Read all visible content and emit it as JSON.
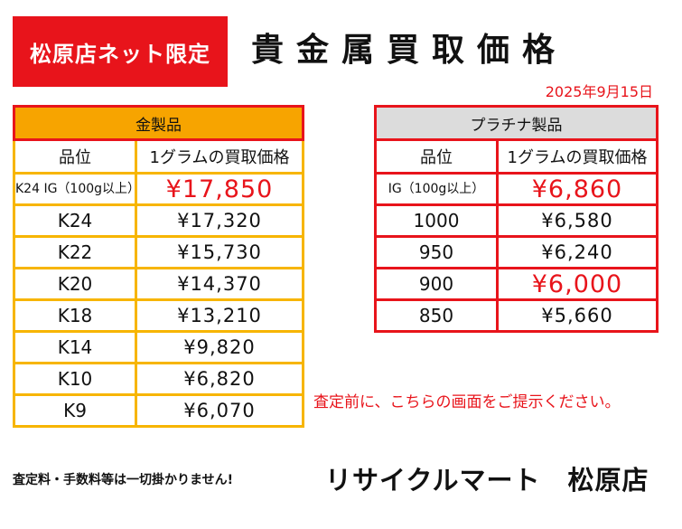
{
  "badge": "松原店ネット限定",
  "title": "貴金属買取価格",
  "date": "2025年9月15日",
  "gold": {
    "header": "金製品",
    "col_grade": "品位",
    "col_price": "1グラムの買取価格",
    "rows": [
      {
        "grade": "K24 IG（100g以上）",
        "price": "¥17,850",
        "highlight": true
      },
      {
        "grade": "K24",
        "price": "¥17,320"
      },
      {
        "grade": "K22",
        "price": "¥15,730"
      },
      {
        "grade": "K20",
        "price": "¥14,370"
      },
      {
        "grade": "K18",
        "price": "¥13,210"
      },
      {
        "grade": "K14",
        "price": "¥9,820"
      },
      {
        "grade": "K10",
        "price": "¥6,820"
      },
      {
        "grade": "K9",
        "price": "¥6,070"
      }
    ]
  },
  "platinum": {
    "header": "プラチナ製品",
    "col_grade": "品位",
    "col_price": "1グラムの買取価格",
    "rows": [
      {
        "grade": "IG（100g以上）",
        "price": "¥6,860",
        "highlight": true
      },
      {
        "grade": "1000",
        "price": "¥6,580"
      },
      {
        "grade": "950",
        "price": "¥6,240"
      },
      {
        "grade": "900",
        "price": "¥6,000",
        "highlight": true
      },
      {
        "grade": "850",
        "price": "¥5,660"
      }
    ]
  },
  "note": "査定前に、こちらの画面をご提示ください。",
  "footer_note": "査定料・手数料等は一切掛かりません!",
  "store_name": "リサイクルマート　松原店",
  "colors": {
    "red": "#e8141b",
    "gold_header": "#f7a400",
    "gold_border": "#f7b500",
    "plat_header": "#dcdcdc"
  }
}
